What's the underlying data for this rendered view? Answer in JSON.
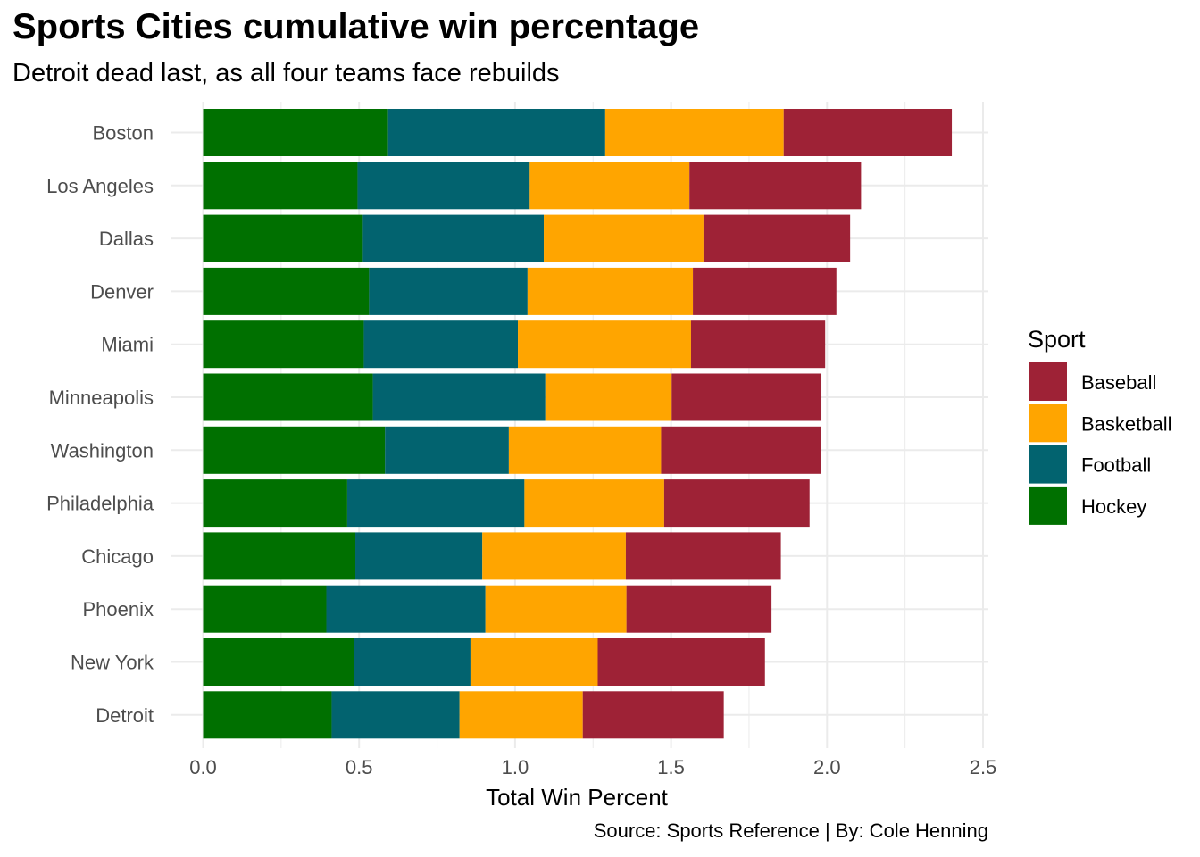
{
  "title": "Sports Cities cumulative win percentage",
  "subtitle": "Detroit dead last, as all four teams face rebuilds",
  "caption": "Source: Sports Reference | By: Cole Henning",
  "colors": {
    "Hockey": "#007000",
    "Football": "#02636F",
    "Basketball": "#FFA500",
    "Baseball": "#9E2236",
    "grid": "#EBEBEB"
  },
  "chart_data": {
    "type": "bar",
    "orientation": "horizontal",
    "stacked": true,
    "categories": [
      "Boston",
      "Los Angeles",
      "Dallas",
      "Denver",
      "Miami",
      "Minneapolis",
      "Washington",
      "Philadelphia",
      "Chicago",
      "Phoenix",
      "New York",
      "Detroit"
    ],
    "series": [
      {
        "name": "Hockey",
        "values": [
          0.593,
          0.495,
          0.512,
          0.532,
          0.515,
          0.544,
          0.583,
          0.462,
          0.488,
          0.395,
          0.485,
          0.412
        ]
      },
      {
        "name": "Football",
        "values": [
          0.696,
          0.552,
          0.58,
          0.508,
          0.494,
          0.553,
          0.397,
          0.568,
          0.407,
          0.51,
          0.372,
          0.41
        ]
      },
      {
        "name": "Basketball",
        "values": [
          0.572,
          0.512,
          0.512,
          0.53,
          0.555,
          0.405,
          0.488,
          0.448,
          0.46,
          0.452,
          0.408,
          0.395
        ]
      },
      {
        "name": "Baseball",
        "values": [
          0.539,
          0.55,
          0.47,
          0.46,
          0.43,
          0.48,
          0.512,
          0.466,
          0.497,
          0.465,
          0.536,
          0.452
        ]
      }
    ],
    "xlabel": "Total Win Percent",
    "ylabel": "",
    "xlim": [
      0,
      2.5
    ],
    "xticks": [
      "0.0",
      "0.5",
      "1.0",
      "1.5",
      "2.0",
      "2.5"
    ],
    "grid": true,
    "legend": {
      "title": "Sport",
      "position": "right",
      "entries": [
        "Baseball",
        "Basketball",
        "Football",
        "Hockey"
      ]
    }
  }
}
